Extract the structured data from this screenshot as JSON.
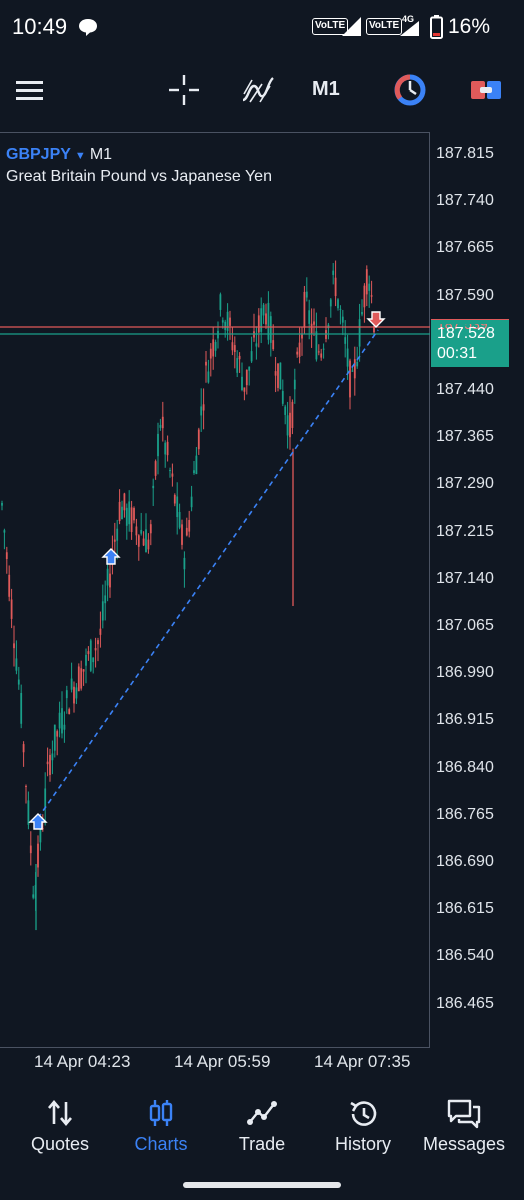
{
  "status_bar": {
    "time": "10:49",
    "volte_1": "VoLTE",
    "volte_2": "VoLTE",
    "network_2": "4G",
    "battery": "16%"
  },
  "toolbar": {
    "timeframe": "M1",
    "icons": [
      "menu-icon",
      "crosshair-icon",
      "indicators-icon",
      "timeframe-label",
      "one-click-trading-icon",
      "trade-toggle-icon"
    ]
  },
  "chart": {
    "symbol": "GBPJPY",
    "timeframe": "M1",
    "description": "Great Britain Pound vs Japanese Yen",
    "price_scale": [
      "187.815",
      "187.740",
      "187.665",
      "187.590",
      "187.528",
      "187.440",
      "187.365",
      "187.290",
      "187.215",
      "187.140",
      "187.065",
      "186.990",
      "186.915",
      "186.840",
      "186.765",
      "186.690",
      "186.615",
      "186.540",
      "186.465"
    ],
    "current_price": "187.528",
    "ask_price_partial": "187.539",
    "bar_countdown": "00:31",
    "time_labels": [
      "14 Apr 04:23",
      "14 Apr 05:59",
      "14 Apr 07:35"
    ],
    "colors": {
      "bull": "#1aa08a",
      "bear": "#e05a5a",
      "trendline": "#3b82f6",
      "background": "#101722"
    }
  },
  "bottom_nav": {
    "items": [
      {
        "label": "Quotes",
        "icon": "quotes-icon",
        "active": false
      },
      {
        "label": "Charts",
        "icon": "charts-icon",
        "active": true
      },
      {
        "label": "Trade",
        "icon": "trade-icon",
        "active": false
      },
      {
        "label": "History",
        "icon": "history-icon",
        "active": false
      },
      {
        "label": "Messages",
        "icon": "messages-icon",
        "active": false
      }
    ]
  }
}
